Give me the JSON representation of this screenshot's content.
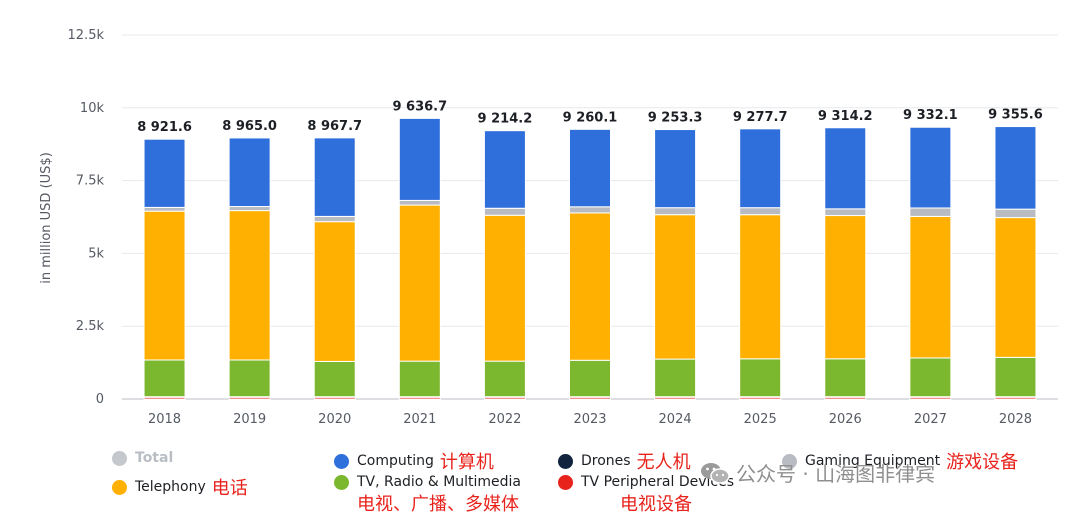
{
  "chart_data": {
    "type": "bar",
    "stacked": true,
    "ylabel": "in million USD (US$)",
    "ylim": [
      0,
      12500
    ],
    "yticks": [
      0,
      2500,
      5000,
      7500,
      10000,
      12500
    ],
    "ytick_labels": [
      "0",
      "2.5k",
      "5k",
      "7.5k",
      "10k",
      "12.5k"
    ],
    "grid": true,
    "categories": [
      "2018",
      "2019",
      "2020",
      "2021",
      "2022",
      "2023",
      "2024",
      "2025",
      "2026",
      "2027",
      "2028"
    ],
    "totals_labels": [
      "8 921.6",
      "8 965.0",
      "8 967.7",
      "9 636.7",
      "9 214.2",
      "9 260.1",
      "9 253.3",
      "9 277.7",
      "9 314.2",
      "9 332.1",
      "9 355.6"
    ],
    "totals": [
      8921.6,
      8965.0,
      8967.7,
      9636.7,
      9214.2,
      9260.1,
      9253.3,
      9277.7,
      9314.2,
      9332.1,
      9355.6
    ],
    "series": [
      {
        "name": "TV Peripheral Devices",
        "color": "#e8231c",
        "values": [
          60,
          60,
          60,
          60,
          60,
          60,
          60,
          60,
          60,
          60,
          60
        ]
      },
      {
        "name": "Drones",
        "color": "#12233d",
        "values": [
          20,
          20,
          20,
          20,
          20,
          20,
          20,
          20,
          20,
          20,
          20
        ]
      },
      {
        "name": "TV, Radio & Multimedia",
        "color": "#7cb82f",
        "values": [
          1260,
          1260,
          1210,
          1220,
          1220,
          1250,
          1290,
          1300,
          1300,
          1330,
          1350
        ]
      },
      {
        "name": "Telephony",
        "color": "#ffb000",
        "values": [
          5110,
          5130,
          4800,
          5360,
          5010,
          5060,
          4960,
          4950,
          4920,
          4860,
          4800
        ]
      },
      {
        "name": "Gaming Equipment",
        "color": "#b8bcc2",
        "values": [
          130,
          140,
          180,
          160,
          240,
          210,
          240,
          240,
          230,
          290,
          290
        ]
      },
      {
        "name": "Computing",
        "color": "#2f6fdb",
        "values": [
          2341.6,
          2355.0,
          2697.7,
          2816.7,
          2664.2,
          2660.1,
          2683.3,
          2707.7,
          2784.2,
          2772.1,
          2835.6
        ]
      }
    ],
    "legend_position": "bottom"
  },
  "legend": {
    "total": "Total",
    "computing": "Computing",
    "computing_cn": "计算机",
    "drones": "Drones",
    "drones_cn": "无人机",
    "gaming": "Gaming Equipment",
    "gaming_cn": "游戏设备",
    "telephony": "Telephony",
    "telephony_cn": "电话",
    "tv_radio": "TV, Radio & Multimedia",
    "tv_radio_cn": "电视、广播、多媒体",
    "tv_peripheral": "TV Peripheral Devices",
    "tv_peripheral_cn": "电视设备"
  },
  "colors": {
    "total": "#c4c7cc",
    "computing": "#2f6fdb",
    "drones": "#12233d",
    "gaming": "#b8bcc2",
    "telephony": "#ffb000",
    "tv_radio": "#7cb82f",
    "tv_peripheral": "#e8231c"
  },
  "watermark": {
    "icon": "wechat-icon",
    "text": "公众号 · 山海图非律宾"
  }
}
